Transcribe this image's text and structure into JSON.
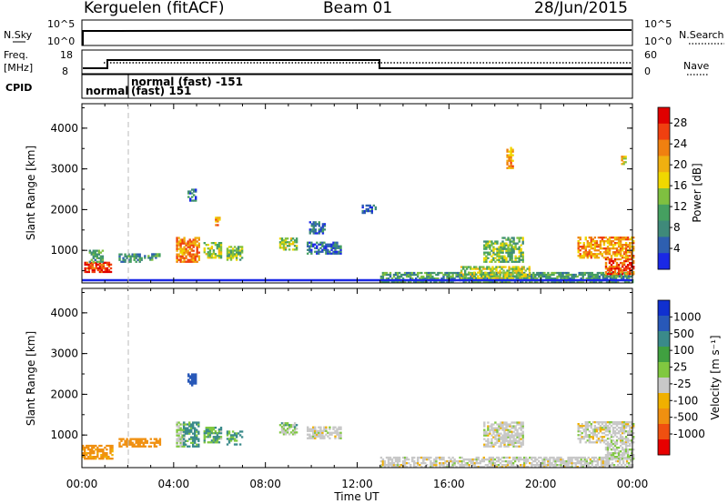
{
  "header": {
    "station": "Kerguelen (fitACF)",
    "beam": "Beam 01",
    "date": "28/Jun/2015"
  },
  "top_panels": {
    "nsky_label": "N.Sky",
    "nsearch_label": "N.Search",
    "nsky_ticks": [
      "10^5",
      "10^0"
    ],
    "nsearch_ticks": [
      "10^5",
      "10^0"
    ],
    "freq_label_1": "Freq.",
    "freq_label_2": "[MHz]",
    "freq_ticks": [
      "18",
      "8"
    ],
    "nave_label": "Nave",
    "nave_ticks": [
      "60",
      "0"
    ],
    "cpid_label": "CPID",
    "cpid_entries": [
      "normal",
      "normal (fast) -151",
      "(fast) 151"
    ]
  },
  "chart_data": [
    {
      "type": "heatmap",
      "name": "power",
      "ylabel": "Slant Range [km]",
      "yticks": [
        "1000",
        "2000",
        "3000",
        "4000"
      ],
      "ylim": [
        200,
        4600
      ],
      "xlim": [
        "00:00",
        "24:00"
      ],
      "colorbar": {
        "label": "Power [dB]",
        "ticks": [
          "4",
          "8",
          "12",
          "16",
          "20",
          "24",
          "28"
        ],
        "colors": [
          "#1a28e6",
          "#2e5fb0",
          "#3f8a7a",
          "#45a060",
          "#7fc040",
          "#f0d800",
          "#f0b010",
          "#f08010",
          "#f04010",
          "#e00000"
        ]
      },
      "regions": [
        {
          "t0": 0.1,
          "t1": 1.3,
          "r0": 450,
          "r1": 700,
          "v": 26
        },
        {
          "t0": 0.3,
          "t1": 0.9,
          "r0": 700,
          "r1": 1000,
          "v": 10
        },
        {
          "t0": 1.6,
          "t1": 2.6,
          "r0": 700,
          "r1": 900,
          "v": 8
        },
        {
          "t0": 2.7,
          "t1": 3.4,
          "r0": 750,
          "r1": 900,
          "v": 10
        },
        {
          "t0": 4.1,
          "t1": 5.1,
          "r0": 700,
          "r1": 1300,
          "v": 22
        },
        {
          "t0": 4.6,
          "t1": 5.0,
          "r0": 2200,
          "r1": 2500,
          "v": 6
        },
        {
          "t0": 5.3,
          "t1": 6.1,
          "r0": 800,
          "r1": 1200,
          "v": 14
        },
        {
          "t0": 5.8,
          "t1": 6.0,
          "r0": 1600,
          "r1": 1800,
          "v": 20
        },
        {
          "t0": 6.3,
          "t1": 7.0,
          "r0": 750,
          "r1": 1100,
          "v": 13
        },
        {
          "t0": 8.6,
          "t1": 9.4,
          "r0": 1000,
          "r1": 1300,
          "v": 14
        },
        {
          "t0": 9.8,
          "t1": 11.3,
          "r0": 900,
          "r1": 1200,
          "v": 6
        },
        {
          "t0": 9.9,
          "t1": 10.6,
          "r0": 1400,
          "r1": 1700,
          "v": 5
        },
        {
          "t0": 12.2,
          "t1": 12.8,
          "r0": 1900,
          "r1": 2100,
          "v": 5
        },
        {
          "t0": 13.0,
          "t1": 24.0,
          "r0": 200,
          "r1": 450,
          "v": 10
        },
        {
          "t0": 16.5,
          "t1": 19.5,
          "r0": 300,
          "r1": 600,
          "v": 15
        },
        {
          "t0": 17.5,
          "t1": 18.3,
          "r0": 700,
          "r1": 1200,
          "v": 13
        },
        {
          "t0": 18.3,
          "t1": 19.2,
          "r0": 700,
          "r1": 1300,
          "v": 12
        },
        {
          "t0": 18.5,
          "t1": 18.8,
          "r0": 3000,
          "r1": 3500,
          "v": 20
        },
        {
          "t0": 21.6,
          "t1": 24.0,
          "r0": 800,
          "r1": 1300,
          "v": 21
        },
        {
          "t0": 22.8,
          "t1": 24.0,
          "r0": 400,
          "r1": 800,
          "v": 25
        },
        {
          "t0": 23.5,
          "t1": 23.7,
          "r0": 3100,
          "r1": 3300,
          "v": 18
        }
      ]
    },
    {
      "type": "heatmap",
      "name": "velocity",
      "ylabel": "Slant Range [km]",
      "yticks": [
        "1000",
        "2000",
        "3000",
        "4000"
      ],
      "ylim": [
        200,
        4600
      ],
      "xlim": [
        "00:00",
        "24:00"
      ],
      "xlabel": "Time UT",
      "xticks": [
        "00:00",
        "04:00",
        "08:00",
        "12:00",
        "16:00",
        "20:00",
        "00:00"
      ],
      "colorbar": {
        "label": "Velocity [m s⁻¹]",
        "ticks": [
          "1000",
          "500",
          "100",
          "25",
          "-25",
          "-100",
          "-500",
          "-1000"
        ],
        "colors": [
          "#1030d0",
          "#2858b8",
          "#3a8a8a",
          "#40a040",
          "#80c840",
          "#c8c8c8",
          "#f0b000",
          "#f09010",
          "#f05010",
          "#e80000"
        ]
      },
      "regions": [
        {
          "t0": 0.0,
          "t1": 1.3,
          "r0": 400,
          "r1": 750,
          "v": -80
        },
        {
          "t0": 1.6,
          "t1": 3.4,
          "r0": 700,
          "r1": 900,
          "v": -110
        },
        {
          "t0": 4.1,
          "t1": 4.5,
          "r0": 700,
          "r1": 1300,
          "v": 20
        },
        {
          "t0": 4.4,
          "t1": 5.1,
          "r0": 700,
          "r1": 1300,
          "v": 80
        },
        {
          "t0": 4.6,
          "t1": 5.0,
          "r0": 2200,
          "r1": 2500,
          "v": 600
        },
        {
          "t0": 5.3,
          "t1": 6.1,
          "r0": 800,
          "r1": 1200,
          "v": 50
        },
        {
          "t0": 6.3,
          "t1": 7.0,
          "r0": 750,
          "r1": 1100,
          "v": 60
        },
        {
          "t0": 8.6,
          "t1": 9.4,
          "r0": 1000,
          "r1": 1300,
          "v": 40
        },
        {
          "t0": 9.8,
          "t1": 11.3,
          "r0": 900,
          "r1": 1200,
          "v": 0
        },
        {
          "t0": 13.0,
          "t1": 24.0,
          "r0": 200,
          "r1": 450,
          "v": 0
        },
        {
          "t0": 17.5,
          "t1": 19.2,
          "r0": 700,
          "r1": 1300,
          "v": 0
        },
        {
          "t0": 21.6,
          "t1": 24.0,
          "r0": 800,
          "r1": 1300,
          "v": 0
        },
        {
          "t0": 22.8,
          "t1": 24.0,
          "r0": 400,
          "r1": 800,
          "v": 10
        }
      ]
    }
  ]
}
